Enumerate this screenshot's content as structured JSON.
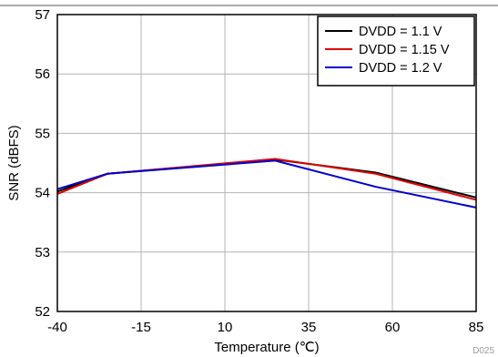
{
  "chart_data": {
    "type": "line",
    "xlabel": "Temperature (℃)",
    "ylabel": "SNR (dBFS)",
    "xlim": [
      -40,
      85
    ],
    "ylim": [
      52,
      57
    ],
    "x_ticks": [
      "-40",
      "-15",
      "10",
      "35",
      "60",
      "85"
    ],
    "y_ticks": [
      "52",
      "53",
      "54",
      "55",
      "56",
      "57"
    ],
    "grid": true,
    "legend_position": "top-right",
    "x": [
      -40,
      -25,
      25,
      55,
      85
    ],
    "series": [
      {
        "name": "DVDD = 1.1 V",
        "color": "#000000",
        "values": [
          54.02,
          54.32,
          54.56,
          54.34,
          53.92
        ]
      },
      {
        "name": "DVDD = 1.15 V",
        "color": "#e00000",
        "values": [
          53.98,
          54.32,
          54.57,
          54.32,
          53.88
        ]
      },
      {
        "name": "DVDD = 1.2 V",
        "color": "#0000cc",
        "values": [
          54.06,
          54.32,
          54.54,
          54.1,
          53.75
        ]
      }
    ],
    "figure_id": "D025"
  }
}
